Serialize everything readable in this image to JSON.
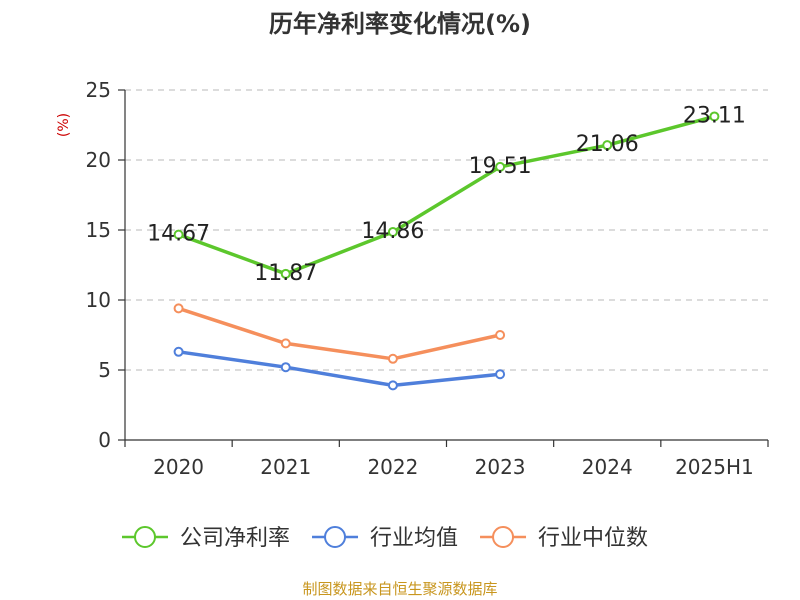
{
  "chart_data": {
    "type": "line",
    "title": "历年净利率变化情况(%)",
    "unit_label": "(%)",
    "categories": [
      "2020",
      "2021",
      "2022",
      "2023",
      "2024",
      "2025H1"
    ],
    "ylim": [
      0,
      25
    ],
    "yticks": [
      0,
      5,
      10,
      15,
      20,
      25
    ],
    "grid": true,
    "legend_position": "bottom",
    "series": [
      {
        "name": "公司净利率",
        "color": "#5cc72c",
        "show_labels": true,
        "values": [
          14.67,
          11.87,
          14.86,
          19.51,
          21.06,
          23.11
        ],
        "labels": [
          "14.67",
          "11.87",
          "14.86",
          "19.51",
          "21.06",
          "23.11"
        ]
      },
      {
        "name": "行业均值",
        "color": "#4f7fdb",
        "show_labels": false,
        "values": [
          6.3,
          5.2,
          3.9,
          4.7,
          null,
          null
        ]
      },
      {
        "name": "行业中位数",
        "color": "#f58f5c",
        "show_labels": false,
        "values": [
          9.4,
          6.9,
          5.8,
          7.5,
          null,
          null
        ]
      }
    ],
    "source": "制图数据来自恒生聚源数据库"
  }
}
